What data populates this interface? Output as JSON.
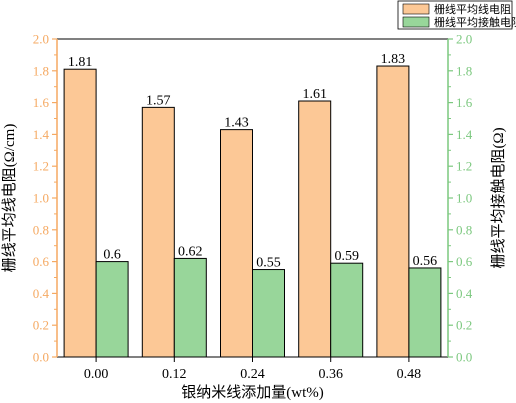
{
  "chart_data": {
    "type": "bar",
    "categories": [
      "0.00",
      "0.12",
      "0.24",
      "0.36",
      "0.48"
    ],
    "series": [
      {
        "name": "栅线平均线电阻",
        "axis": "left",
        "color": "#FCC896",
        "values": [
          1.81,
          1.57,
          1.43,
          1.61,
          1.83
        ]
      },
      {
        "name": "栅线平均接触电阻",
        "axis": "right",
        "color": "#98D69A",
        "values": [
          0.6,
          0.62,
          0.55,
          0.59,
          0.56
        ]
      }
    ],
    "xlabel": "银纳米线添加量(wt%)",
    "ylabel": "栅线平均线电阻(Ω/cm)",
    "ylabel_right": "栅线平均接触电阻(Ω)",
    "ylim": [
      0,
      2.0
    ],
    "ylim_right": [
      0,
      2.0
    ],
    "yticks": [
      "0.0",
      "0.2",
      "0.4",
      "0.6",
      "0.8",
      "1.0",
      "1.2",
      "1.4",
      "1.6",
      "1.8",
      "2.0"
    ],
    "yticks_right": [
      "0.0",
      "0.2",
      "0.4",
      "0.6",
      "0.8",
      "1.0",
      "1.2",
      "1.4",
      "1.6",
      "1.8",
      "2.0"
    ],
    "left_axis_color": "#F5A962",
    "right_axis_color": "#7CC87F",
    "grid": false,
    "legend_position": "top-right",
    "data_labels": {
      "栅线平均线电阻": [
        "1.81",
        "1.57",
        "1.43",
        "1.61",
        "1.83"
      ],
      "栅线平均接触电阻": [
        "0.6",
        "0.62",
        "0.55",
        "0.59",
        "0.56"
      ]
    }
  }
}
